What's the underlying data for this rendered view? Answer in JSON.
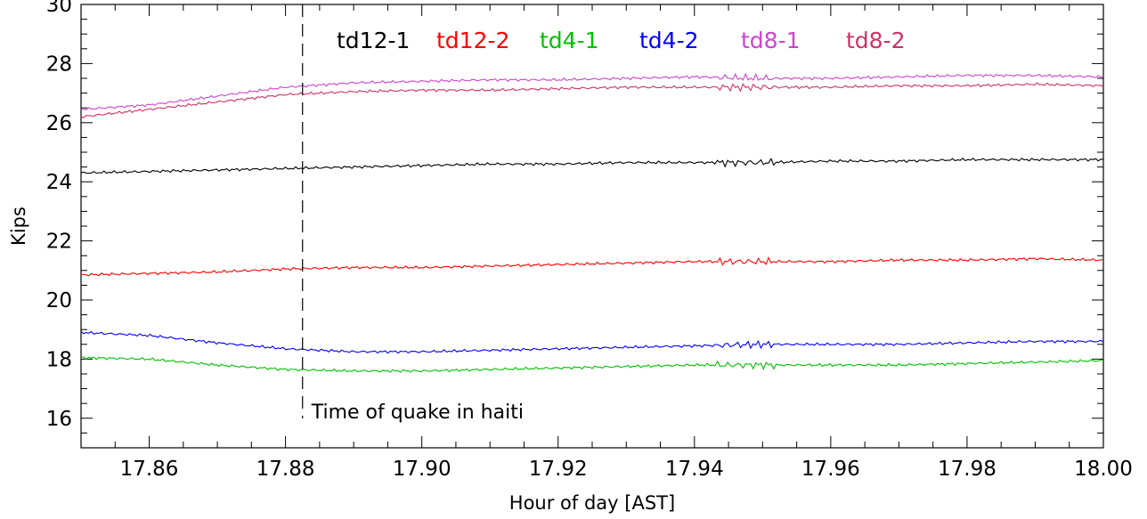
{
  "chart_data": {
    "type": "line",
    "title": "",
    "xlabel": "Hour of day [AST]",
    "ylabel": "Kips",
    "xlim": [
      17.85,
      18.0
    ],
    "ylim": [
      15,
      30
    ],
    "x_ticks": [
      17.86,
      17.88,
      17.9,
      17.92,
      17.94,
      17.96,
      17.98,
      18.0
    ],
    "x_tick_labels": [
      "17.86",
      "17.88",
      "17.90",
      "17.92",
      "17.94",
      "17.96",
      "17.98",
      "18.00"
    ],
    "y_ticks": [
      16,
      18,
      20,
      22,
      24,
      26,
      28,
      30
    ],
    "y_tick_labels": [
      "16",
      "18",
      "20",
      "22",
      "24",
      "26",
      "28",
      "30"
    ],
    "grid": false,
    "legend_position": "top",
    "annotation": {
      "label": "Time of quake in haiti",
      "x": 17.8825
    },
    "series": [
      {
        "name": "td12-1",
        "color": "#000000",
        "x": [
          17.85,
          17.86,
          17.87,
          17.88,
          17.89,
          17.9,
          17.91,
          17.92,
          17.93,
          17.94,
          17.95,
          17.96,
          17.97,
          17.98,
          17.99,
          18.0
        ],
        "y": [
          24.3,
          24.35,
          24.4,
          24.45,
          24.5,
          24.55,
          24.6,
          24.6,
          24.65,
          24.65,
          24.65,
          24.7,
          24.7,
          24.75,
          24.75,
          24.75
        ]
      },
      {
        "name": "td12-2",
        "color": "#ff0000",
        "x": [
          17.85,
          17.86,
          17.87,
          17.88,
          17.89,
          17.9,
          17.91,
          17.92,
          17.93,
          17.94,
          17.95,
          17.96,
          17.97,
          17.98,
          17.99,
          18.0
        ],
        "y": [
          20.85,
          20.9,
          20.95,
          21.05,
          21.1,
          21.1,
          21.15,
          21.2,
          21.25,
          21.3,
          21.3,
          21.3,
          21.35,
          21.35,
          21.4,
          21.35
        ]
      },
      {
        "name": "td4-1",
        "color": "#00c000",
        "x": [
          17.85,
          17.86,
          17.87,
          17.88,
          17.89,
          17.9,
          17.91,
          17.92,
          17.93,
          17.94,
          17.95,
          17.96,
          17.97,
          17.98,
          17.99,
          18.0
        ],
        "y": [
          18.05,
          18.0,
          17.8,
          17.65,
          17.6,
          17.6,
          17.65,
          17.7,
          17.75,
          17.8,
          17.8,
          17.8,
          17.8,
          17.85,
          17.9,
          17.95
        ]
      },
      {
        "name": "td4-2",
        "color": "#0000ff",
        "x": [
          17.85,
          17.86,
          17.87,
          17.88,
          17.89,
          17.9,
          17.91,
          17.92,
          17.93,
          17.94,
          17.95,
          17.96,
          17.97,
          17.98,
          17.99,
          18.0
        ],
        "y": [
          18.9,
          18.8,
          18.55,
          18.35,
          18.25,
          18.25,
          18.3,
          18.35,
          18.4,
          18.45,
          18.5,
          18.5,
          18.5,
          18.55,
          18.6,
          18.6
        ]
      },
      {
        "name": "td8-1",
        "color": "#cc44cc",
        "x": [
          17.85,
          17.86,
          17.87,
          17.88,
          17.89,
          17.9,
          17.91,
          17.92,
          17.93,
          17.94,
          17.95,
          17.96,
          17.97,
          17.98,
          17.99,
          18.0
        ],
        "y": [
          26.45,
          26.6,
          26.9,
          27.2,
          27.35,
          27.4,
          27.45,
          27.45,
          27.5,
          27.55,
          27.5,
          27.5,
          27.55,
          27.6,
          27.6,
          27.55
        ]
      },
      {
        "name": "td8-2",
        "color": "#cc3366",
        "x": [
          17.85,
          17.86,
          17.87,
          17.88,
          17.89,
          17.9,
          17.91,
          17.92,
          17.93,
          17.94,
          17.95,
          17.96,
          17.97,
          17.98,
          17.99,
          18.0
        ],
        "y": [
          26.2,
          26.45,
          26.7,
          26.95,
          27.05,
          27.1,
          27.1,
          27.15,
          27.2,
          27.2,
          27.2,
          27.2,
          27.25,
          27.25,
          27.3,
          27.25
        ]
      }
    ]
  }
}
